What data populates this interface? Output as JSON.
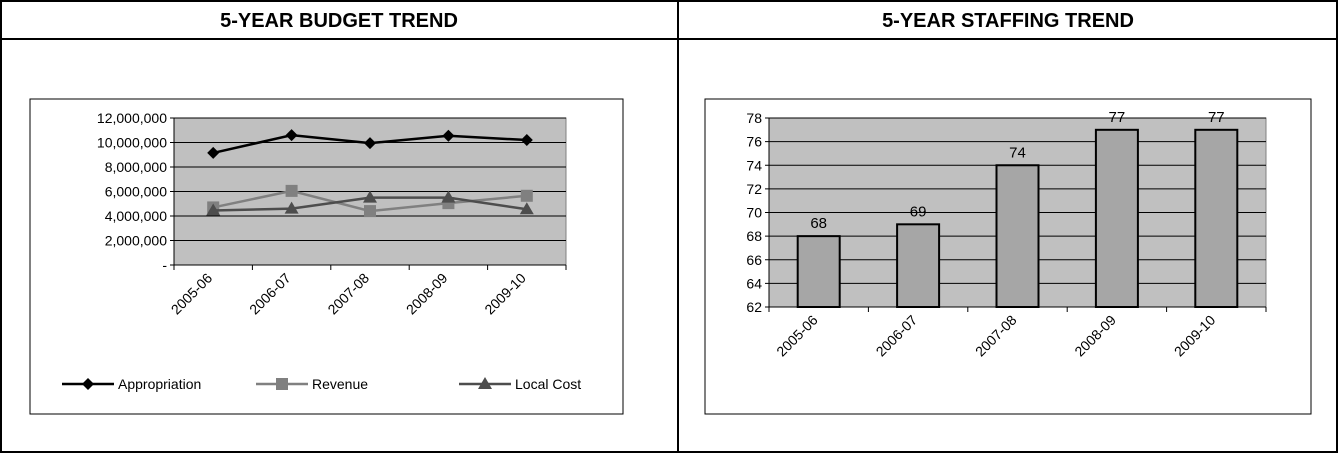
{
  "panels": {
    "left_title": "5-YEAR BUDGET TREND",
    "right_title": "5-YEAR STAFFING TREND"
  },
  "chart_data": [
    {
      "type": "line",
      "title": "",
      "categories": [
        "2005-06",
        "2006-07",
        "2007-08",
        "2008-09",
        "2009-10"
      ],
      "series": [
        {
          "name": "Appropriation",
          "values": [
            9150000,
            10600000,
            9950000,
            10550000,
            10200000
          ],
          "color": "#000000",
          "marker": "diamond"
        },
        {
          "name": "Revenue",
          "values": [
            4700000,
            6050000,
            4400000,
            5050000,
            5650000
          ],
          "color": "#808080",
          "marker": "square"
        },
        {
          "name": "Local Cost",
          "values": [
            4450000,
            4600000,
            5500000,
            5500000,
            4550000
          ],
          "color": "#4d4d4d",
          "marker": "triangle"
        }
      ],
      "ylim": [
        0,
        12000000
      ],
      "yticks": [
        0,
        2000000,
        4000000,
        6000000,
        8000000,
        10000000,
        12000000
      ],
      "ytick_labels": [
        "-",
        "2,000,000",
        "4,000,000",
        "6,000,000",
        "8,000,000",
        "10,000,000",
        "12,000,000"
      ],
      "plot_background": "#c0c0c0",
      "grid": true,
      "legend": "bottom"
    },
    {
      "type": "bar",
      "title": "",
      "categories": [
        "2005-06",
        "2006-07",
        "2007-08",
        "2008-09",
        "2009-10"
      ],
      "values": [
        68,
        69,
        74,
        77,
        77
      ],
      "value_labels": [
        "68",
        "69",
        "74",
        "77",
        "77"
      ],
      "ylim": [
        62,
        78
      ],
      "yticks": [
        62,
        64,
        66,
        68,
        70,
        72,
        74,
        76,
        78
      ],
      "ytick_labels": [
        "62",
        "64",
        "66",
        "68",
        "70",
        "72",
        "74",
        "76",
        "78"
      ],
      "bar_color": "#a6a6a6",
      "plot_background": "#c0c0c0",
      "grid": true
    }
  ]
}
